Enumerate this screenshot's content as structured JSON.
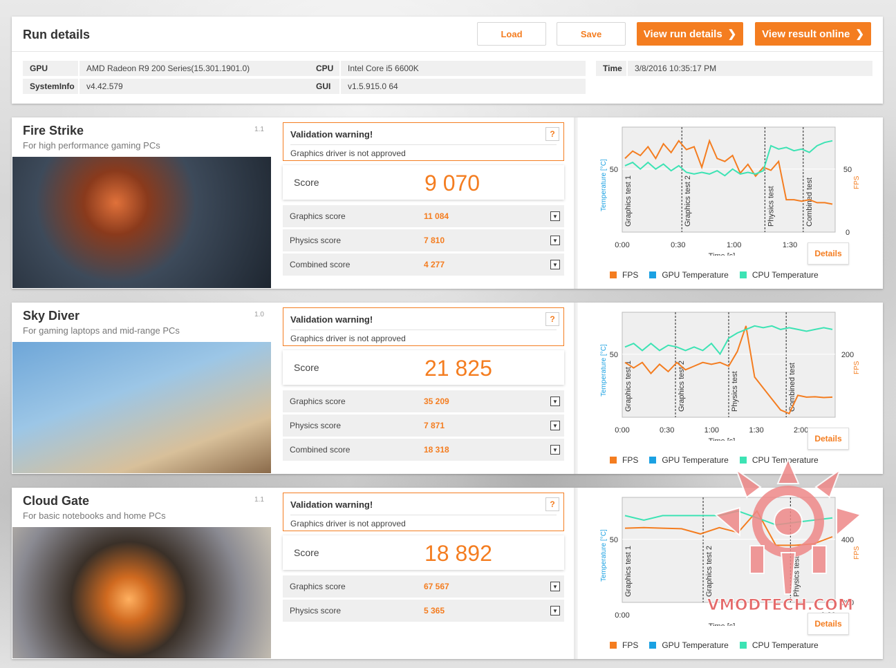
{
  "run": {
    "title": "Run details",
    "buttons": {
      "load": "Load",
      "save": "Save",
      "view_run_details": "View run details",
      "view_result_online": "View result online"
    },
    "info": {
      "gpu_key": "GPU",
      "gpu_val": "AMD Radeon R9 200 Series(15.301.1901.0)",
      "sysinfo_key": "SystemInfo",
      "sysinfo_val": "v4.42.579",
      "cpu_key": "CPU",
      "cpu_val": "Intel Core i5 6600K",
      "gui_key": "GUI",
      "gui_val": "v1.5.915.0 64",
      "time_key": "Time",
      "time_val": "3/8/2016 10:35:17 PM"
    }
  },
  "common": {
    "warning_title": "Validation warning!",
    "warning_text": "Graphics driver is not approved",
    "warning_help": "?",
    "score_label": "Score",
    "details": "Details",
    "axis_temp": "Temperature [°C]",
    "axis_fps": "FPS",
    "axis_time": "Time [s]",
    "legend": [
      "FPS",
      "GPU Temperature",
      "CPU Temperature"
    ]
  },
  "colors": {
    "accent": "#f47d20",
    "fps": "#f47d20",
    "gpu_temp": "#1ba1e2",
    "cpu_temp": "#3de3b4"
  },
  "benchmarks": [
    {
      "name": "Fire Strike",
      "subtitle": "For high performance gaming PCs",
      "version": "1.1",
      "score": "9 070",
      "subscores": [
        {
          "label": "Graphics score",
          "value": "11 084"
        },
        {
          "label": "Physics score",
          "value": "7 810"
        },
        {
          "label": "Combined score",
          "value": "4 277"
        }
      ]
    },
    {
      "name": "Sky Diver",
      "subtitle": "For gaming laptops and mid-range PCs",
      "version": "1.0",
      "score": "21 825",
      "subscores": [
        {
          "label": "Graphics score",
          "value": "35 209"
        },
        {
          "label": "Physics score",
          "value": "7 871"
        },
        {
          "label": "Combined score",
          "value": "18 318"
        }
      ]
    },
    {
      "name": "Cloud Gate",
      "subtitle": "For basic notebooks and home PCs",
      "version": "1.1",
      "score": "18 892",
      "subscores": [
        {
          "label": "Graphics score",
          "value": "67 567"
        },
        {
          "label": "Physics score",
          "value": "5 365"
        }
      ]
    }
  ],
  "chart_data": [
    {
      "type": "line",
      "x_ticks": [
        "0:00",
        "0:30",
        "1:00",
        "1:30"
      ],
      "y_left_ticks": [
        "50"
      ],
      "y_right_ticks": [
        "50",
        "0"
      ],
      "sections": [
        "Graphics test 1",
        "Graphics test 2",
        "Physics test",
        "Combined test"
      ],
      "series": [
        {
          "name": "FPS",
          "values": [
            50,
            55,
            52,
            58,
            50,
            60,
            54,
            62,
            56,
            58,
            44,
            62,
            50,
            48,
            52,
            40,
            46,
            38,
            44,
            42,
            48,
            22,
            22,
            21,
            22,
            20,
            20,
            19
          ]
        },
        {
          "name": "CPU Temperature",
          "values": [
            40,
            42,
            38,
            42,
            38,
            41,
            37,
            40,
            36,
            35,
            36,
            35,
            37,
            34,
            38,
            35,
            36,
            35,
            37,
            52,
            50,
            51,
            49,
            50,
            48,
            52,
            54,
            55
          ]
        }
      ]
    },
    {
      "type": "line",
      "x_ticks": [
        "0:00",
        "0:30",
        "1:00",
        "1:30",
        "2:00"
      ],
      "y_left_ticks": [
        "50"
      ],
      "y_right_ticks": [
        "200"
      ],
      "sections": [
        "Graphics test 1",
        "Graphics test 2",
        "Physics test",
        "Combined test"
      ],
      "series": [
        {
          "name": "FPS",
          "values": [
            150,
            135,
            150,
            120,
            145,
            125,
            150,
            130,
            140,
            150,
            145,
            150,
            140,
            180,
            250,
            110,
            80,
            50,
            20,
            10,
            60,
            55,
            56,
            54,
            55
          ]
        },
        {
          "name": "CPU Temperature",
          "values": [
            40,
            42,
            38,
            42,
            38,
            41,
            40,
            38,
            40,
            38,
            42,
            36,
            45,
            48,
            50,
            52,
            51,
            52,
            50,
            51,
            50,
            49,
            50,
            51,
            50
          ]
        }
      ]
    },
    {
      "type": "line",
      "x_ticks": [
        "0:00",
        "0:30"
      ],
      "y_left_ticks": [
        "50"
      ],
      "y_right_ticks": [
        "400",
        "200"
      ],
      "sections": [
        "Graphics test 1",
        "Graphics test 2",
        "Physics test"
      ],
      "series": [
        {
          "name": "FPS",
          "values": [
            260,
            262,
            260,
            258,
            240,
            262,
            245,
            320,
            200,
            200,
            205,
            230
          ]
        },
        {
          "name": "CPU Temperature",
          "values": [
            38,
            36,
            38,
            38,
            38,
            38,
            40,
            37,
            34,
            35,
            36,
            37
          ]
        }
      ]
    }
  ]
}
